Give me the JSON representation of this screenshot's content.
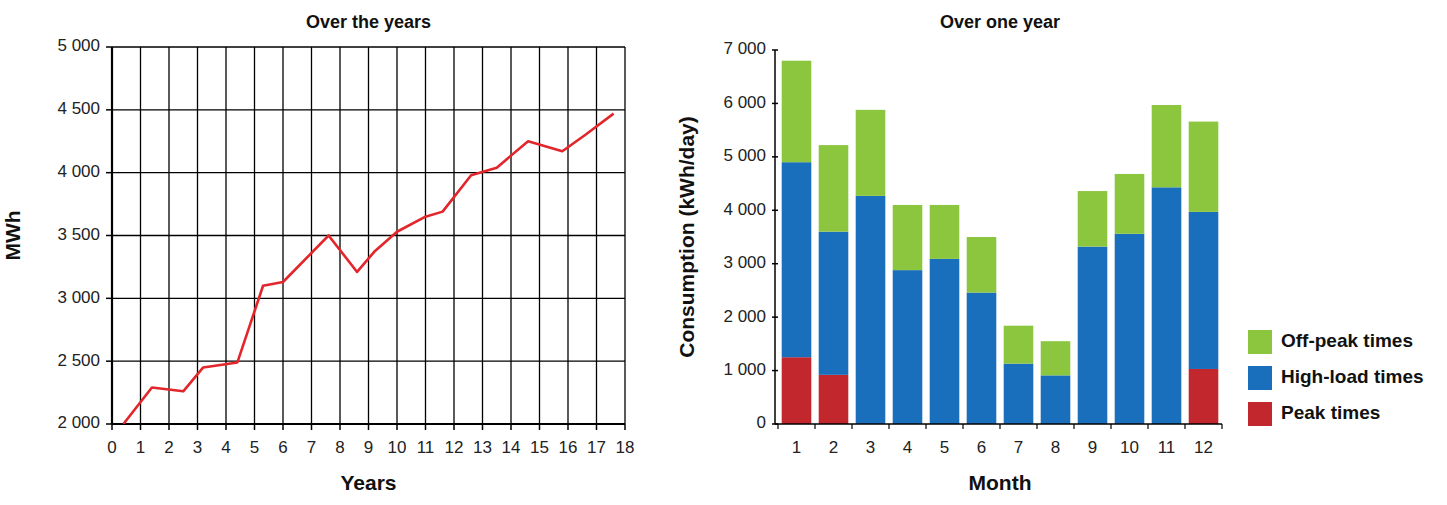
{
  "chart_data": [
    {
      "type": "line",
      "title": "Over the years",
      "x_label": "Years",
      "y_label": "MWh",
      "x": [
        0.4,
        1.4,
        2.5,
        3.2,
        4.4,
        5.3,
        6.0,
        7.6,
        8.6,
        9.2,
        10.0,
        11.0,
        11.6,
        12.6,
        13.5,
        14.6,
        15.8,
        16.6,
        17.6
      ],
      "values": [
        2000,
        2290,
        2260,
        2450,
        2490,
        3100,
        3130,
        3500,
        3210,
        3370,
        3530,
        3650,
        3690,
        3980,
        4040,
        4250,
        4170,
        4300,
        4470
      ],
      "color": "#e2262b",
      "xlim": [
        0,
        18
      ],
      "xticks": [
        0,
        1,
        2,
        3,
        4,
        5,
        6,
        7,
        8,
        9,
        10,
        11,
        12,
        13,
        14,
        15,
        16,
        17,
        18
      ],
      "ylim": [
        2000,
        5000
      ],
      "yticks": [
        {
          "value": 2000,
          "label": "2 000"
        },
        {
          "value": 2500,
          "label": "2 500"
        },
        {
          "value": 3000,
          "label": "3 000"
        },
        {
          "value": 3500,
          "label": "3 500"
        },
        {
          "value": 4000,
          "label": "4 000"
        },
        {
          "value": 4500,
          "label": "4 500"
        },
        {
          "value": 5000,
          "label": "5 000"
        }
      ],
      "grid": true
    },
    {
      "type": "bar",
      "title": "Over one year",
      "x_label": "Month",
      "y_label": "Consumption (kWh/day)",
      "categories": [
        "1",
        "2",
        "3",
        "4",
        "5",
        "6",
        "7",
        "8",
        "9",
        "10",
        "11",
        "12"
      ],
      "series": [
        {
          "name": "Peak times",
          "color": "#c1272d",
          "values": [
            1250,
            920,
            0,
            0,
            0,
            0,
            0,
            0,
            0,
            0,
            0,
            1030
          ]
        },
        {
          "name": "High-load times",
          "color": "#1a6fbd",
          "values": [
            3650,
            2680,
            4270,
            2880,
            3090,
            2460,
            1130,
            910,
            3320,
            3560,
            4430,
            2940
          ]
        },
        {
          "name": "Off-peak times",
          "color": "#8cc63f",
          "values": [
            1900,
            1620,
            1610,
            1220,
            1010,
            1040,
            710,
            640,
            1040,
            1120,
            1540,
            1690
          ]
        }
      ],
      "ylim": [
        0,
        7000
      ],
      "yticks": [
        0,
        {
          "value": 1000,
          "label": "1 000"
        },
        {
          "value": 2000,
          "label": "2 000"
        },
        {
          "value": 3000,
          "label": "3 000"
        },
        {
          "value": 4000,
          "label": "4 000"
        },
        {
          "value": 5000,
          "label": "5 000"
        },
        {
          "value": 6000,
          "label": "6 000"
        },
        {
          "value": 7000,
          "label": "7 000"
        }
      ],
      "stacked": true,
      "legend": "right"
    }
  ]
}
